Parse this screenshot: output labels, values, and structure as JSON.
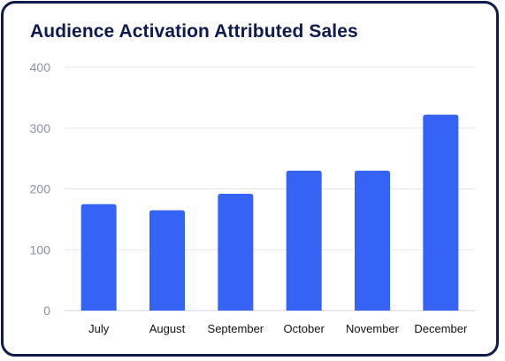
{
  "chart_data": {
    "type": "bar",
    "title": "Audience Activation Attributed Sales",
    "xlabel": "",
    "ylabel": "",
    "categories": [
      "July",
      "August",
      "September",
      "October",
      "November",
      "December"
    ],
    "values": [
      175,
      165,
      192,
      230,
      230,
      322
    ],
    "ylim": [
      0,
      400
    ],
    "yticks": [
      0,
      100,
      200,
      300,
      400
    ],
    "grid": true,
    "legend": "none",
    "bar_color": "#3563f5"
  }
}
